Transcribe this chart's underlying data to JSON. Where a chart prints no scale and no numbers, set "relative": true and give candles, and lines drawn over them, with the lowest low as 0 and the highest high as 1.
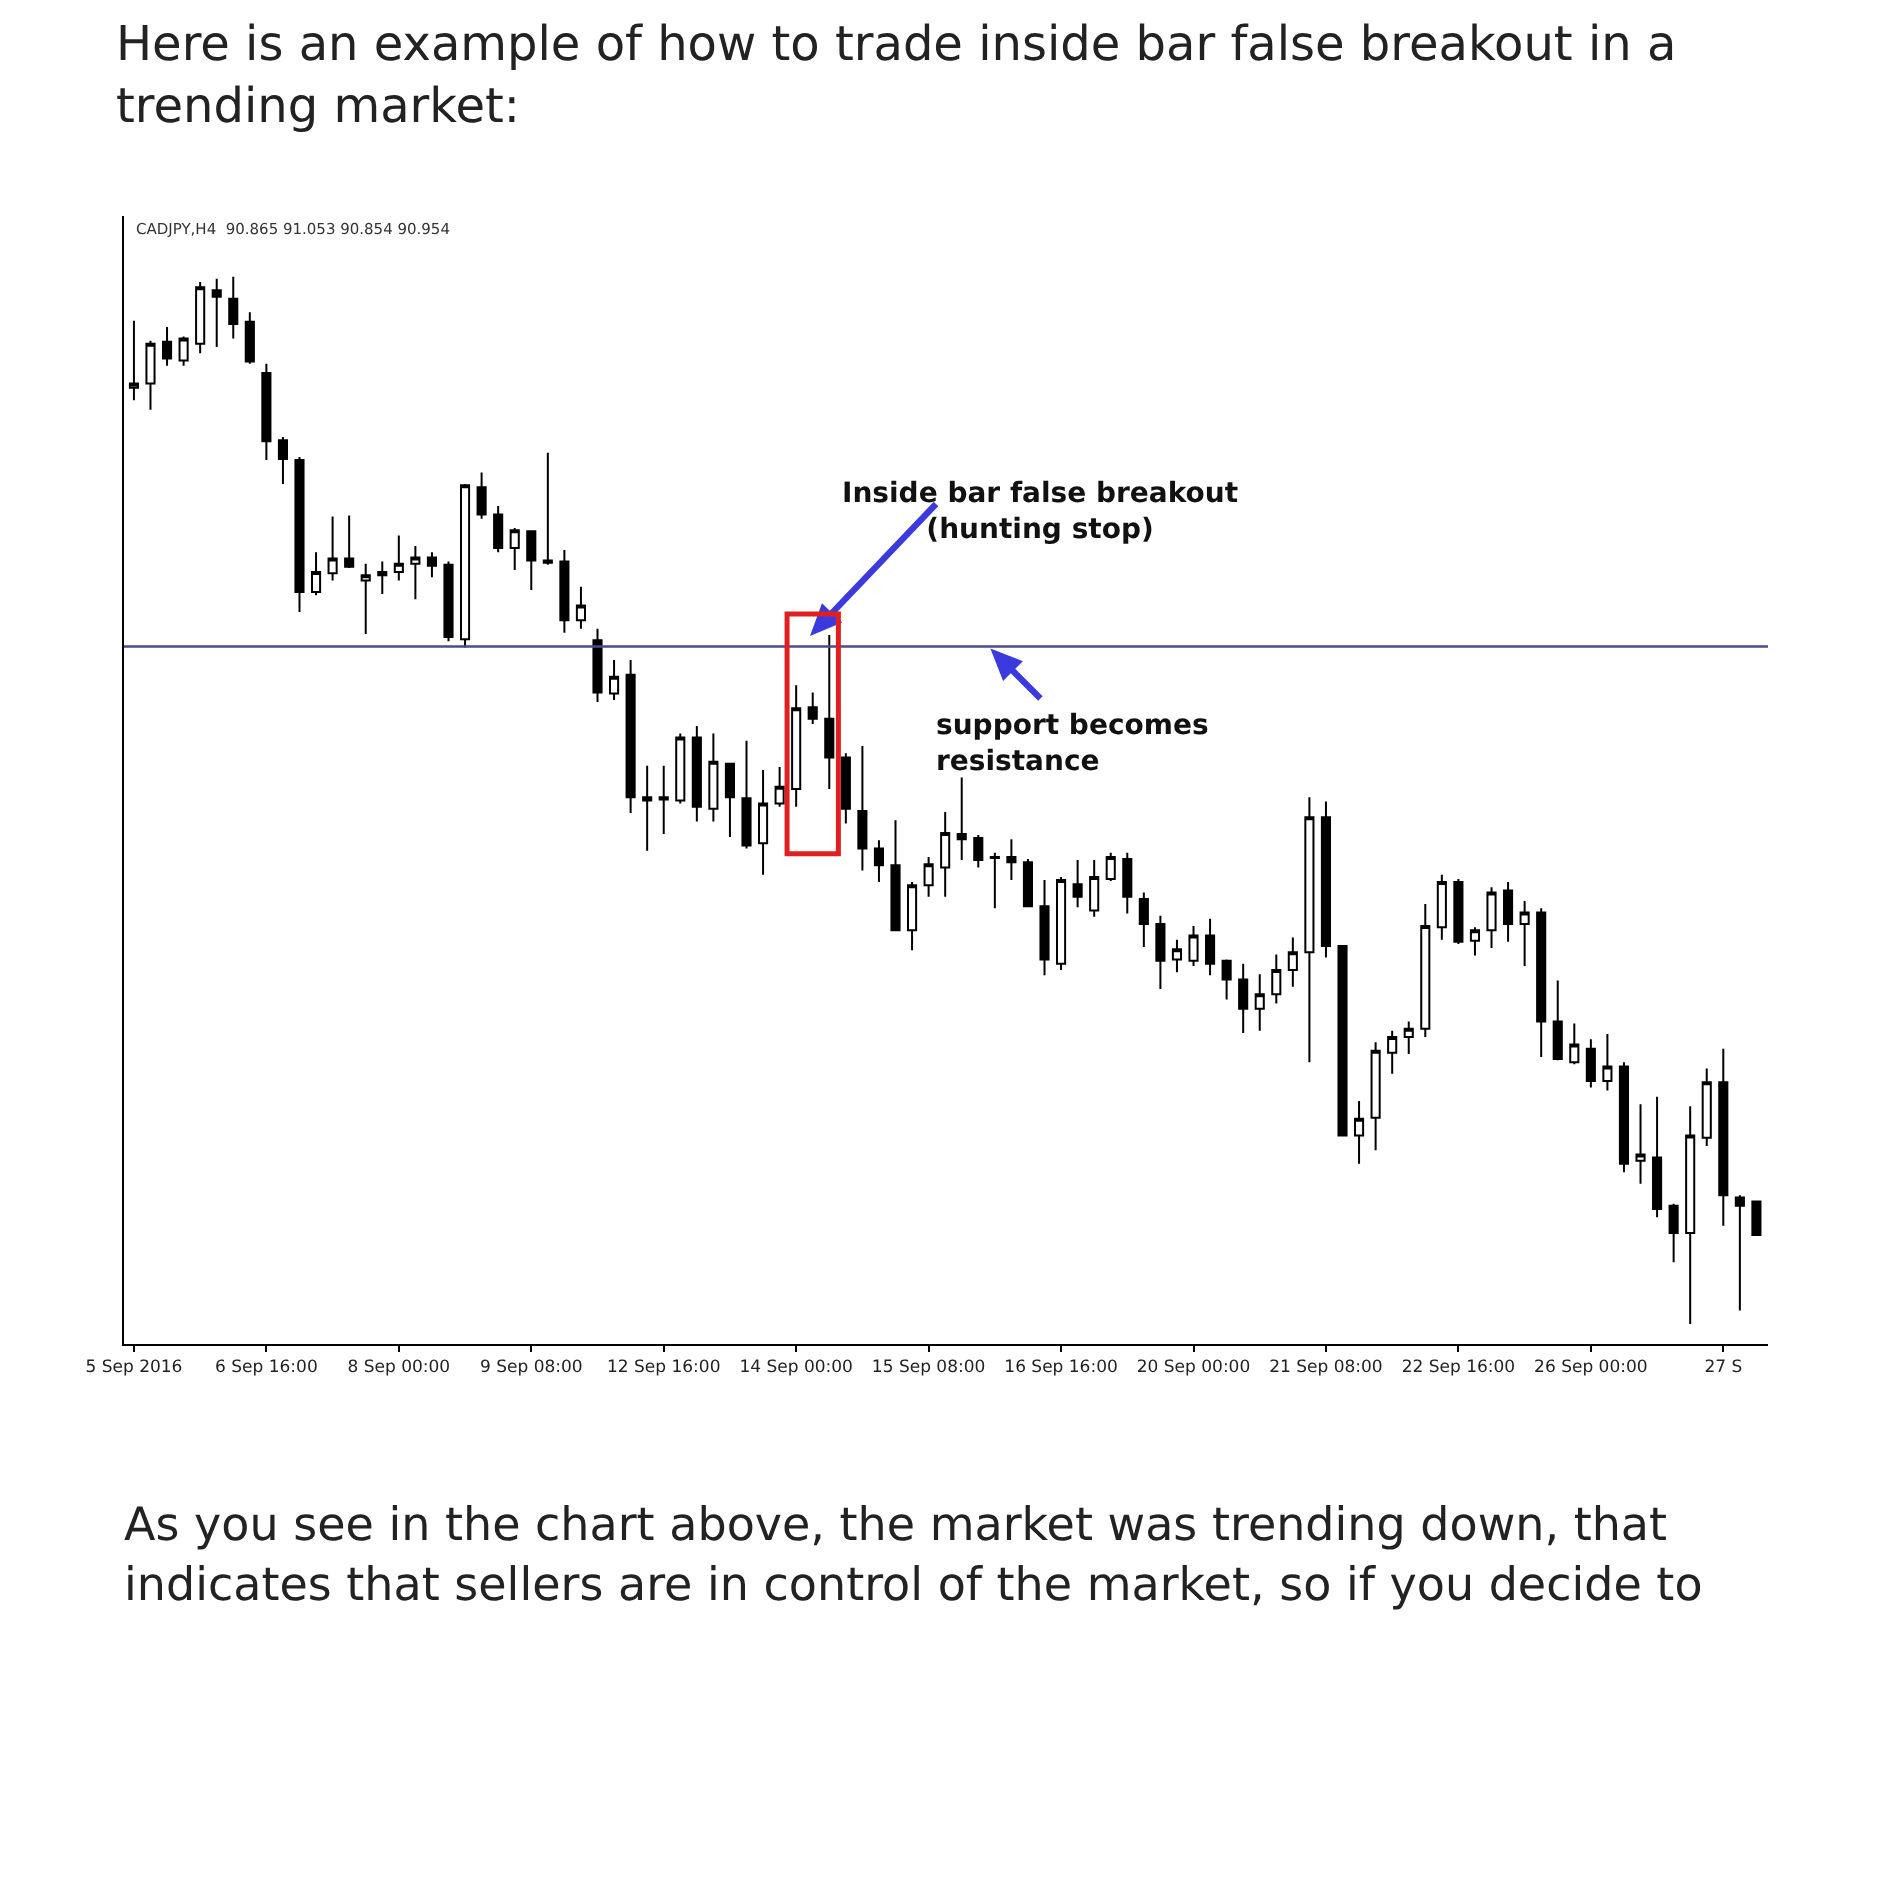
{
  "chart_data": {
    "type": "candlestick",
    "title": "Here is an example of how to trade inside bar false breakout in a trending market:",
    "subtitle": "CADJPY,H4  90.865 91.053 90.854 90.954",
    "relative": true,
    "tick_labels": "x",
    "categories": [
      "5 Sep 2016",
      null,
      null,
      null,
      null,
      null,
      null,
      null,
      "6 Sep 16:00",
      null,
      null,
      null,
      null,
      null,
      null,
      null,
      "8 Sep 00:00",
      null,
      null,
      null,
      null,
      null,
      null,
      null,
      "9 Sep 08:00",
      null,
      null,
      null,
      null,
      null,
      null,
      null,
      "12 Sep 16:00",
      null,
      null,
      null,
      null,
      null,
      null,
      null,
      "14 Sep 00:00",
      null,
      null,
      null,
      null,
      null,
      null,
      null,
      "15 Sep 08:00",
      null,
      null,
      null,
      null,
      null,
      null,
      null,
      "16 Sep 16:00",
      null,
      null,
      null,
      null,
      null,
      null,
      null,
      "20 Sep 00:00",
      null,
      null,
      null,
      null,
      null,
      null,
      null,
      "21 Sep 08:00",
      null,
      null,
      null,
      null,
      null,
      null,
      null,
      "22 Sep 16:00",
      null,
      null,
      null,
      null,
      null,
      null,
      null,
      "26 Sep 00:00",
      null,
      null,
      null,
      null,
      null,
      null,
      null,
      "27 S",
      null,
      null
    ],
    "ohlc": [
      [
        0.894,
        0.958,
        0.882,
        0.898
      ],
      [
        0.898,
        0.939,
        0.873,
        0.936
      ],
      [
        0.938,
        0.952,
        0.915,
        0.922
      ],
      [
        0.92,
        0.943,
        0.915,
        0.941
      ],
      [
        0.936,
        0.995,
        0.927,
        0.99
      ],
      [
        0.987,
        0.998,
        0.933,
        0.981
      ],
      [
        0.979,
        1,
        0.941,
        0.955
      ],
      [
        0.957,
        0.966,
        0.917,
        0.919
      ],
      [
        0.908,
        0.917,
        0.825,
        0.843
      ],
      [
        0.844,
        0.847,
        0.802,
        0.826
      ],
      [
        0.825,
        0.828,
        0.68,
        0.699
      ],
      [
        0.699,
        0.737,
        0.696,
        0.718
      ],
      [
        0.717,
        0.771,
        0.71,
        0.731
      ],
      [
        0.731,
        0.772,
        0.722,
        0.723
      ],
      [
        0.71,
        0.726,
        0.659,
        0.715
      ],
      [
        0.715,
        0.728,
        0.697,
        0.718
      ],
      [
        0.718,
        0.753,
        0.71,
        0.726
      ],
      [
        0.726,
        0.743,
        0.692,
        0.732
      ],
      [
        0.732,
        0.737,
        0.713,
        0.724
      ],
      [
        0.725,
        0.728,
        0.652,
        0.656
      ],
      [
        0.654,
        0.802,
        0.646,
        0.801
      ],
      [
        0.799,
        0.813,
        0.769,
        0.773
      ],
      [
        0.773,
        0.781,
        0.737,
        0.741
      ],
      [
        0.741,
        0.76,
        0.72,
        0.758
      ],
      [
        0.757,
        0.758,
        0.701,
        0.729
      ],
      [
        0.729,
        0.832,
        0.725,
        0.727
      ],
      [
        0.728,
        0.739,
        0.66,
        0.672
      ],
      [
        0.672,
        0.704,
        0.664,
        0.686
      ],
      [
        0.653,
        0.664,
        0.594,
        0.603
      ],
      [
        0.602,
        0.634,
        0.596,
        0.618
      ],
      [
        0.62,
        0.634,
        0.488,
        0.503
      ],
      [
        0.503,
        0.533,
        0.452,
        0.5
      ],
      [
        0.501,
        0.533,
        0.468,
        0.503
      ],
      [
        0.5,
        0.564,
        0.497,
        0.56
      ],
      [
        0.56,
        0.571,
        0.48,
        0.494
      ],
      [
        0.492,
        0.564,
        0.48,
        0.537
      ],
      [
        0.535,
        0.536,
        0.465,
        0.503
      ],
      [
        0.502,
        0.557,
        0.454,
        0.457
      ],
      [
        0.459,
        0.529,
        0.429,
        0.497
      ],
      [
        0.497,
        0.532,
        0.494,
        0.513
      ],
      [
        0.511,
        0.61,
        0.494,
        0.588
      ],
      [
        0.589,
        0.603,
        0.573,
        0.578
      ],
      [
        0.578,
        0.658,
        0.511,
        0.541
      ],
      [
        0.541,
        0.545,
        0.478,
        0.492
      ],
      [
        0.49,
        0.552,
        0.433,
        0.454
      ],
      [
        0.454,
        0.462,
        0.422,
        0.438
      ],
      [
        0.438,
        0.481,
        0.375,
        0.376
      ],
      [
        0.376,
        0.422,
        0.357,
        0.419
      ],
      [
        0.419,
        0.446,
        0.408,
        0.439
      ],
      [
        0.436,
        0.489,
        0.408,
        0.469
      ],
      [
        0.468,
        0.522,
        0.443,
        0.463
      ],
      [
        0.464,
        0.467,
        0.436,
        0.443
      ],
      [
        0.446,
        0.45,
        0.397,
        0.445
      ],
      [
        0.446,
        0.463,
        0.424,
        0.441
      ],
      [
        0.441,
        0.444,
        0.398,
        0.399
      ],
      [
        0.399,
        0.424,
        0.333,
        0.348
      ],
      [
        0.344,
        0.427,
        0.338,
        0.424
      ],
      [
        0.42,
        0.443,
        0.398,
        0.408
      ],
      [
        0.395,
        0.443,
        0.389,
        0.427
      ],
      [
        0.425,
        0.45,
        0.423,
        0.446
      ],
      [
        0.444,
        0.45,
        0.392,
        0.408
      ],
      [
        0.406,
        0.412,
        0.36,
        0.382
      ],
      [
        0.382,
        0.39,
        0.32,
        0.347
      ],
      [
        0.348,
        0.367,
        0.336,
        0.358
      ],
      [
        0.347,
        0.38,
        0.342,
        0.371
      ],
      [
        0.371,
        0.387,
        0.333,
        0.344
      ],
      [
        0.347,
        0.348,
        0.31,
        0.329
      ],
      [
        0.329,
        0.344,
        0.278,
        0.301
      ],
      [
        0.301,
        0.334,
        0.28,
        0.315
      ],
      [
        0.315,
        0.353,
        0.306,
        0.338
      ],
      [
        0.338,
        0.369,
        0.322,
        0.355
      ],
      [
        0.355,
        0.503,
        0.25,
        0.484
      ],
      [
        0.484,
        0.499,
        0.35,
        0.361
      ],
      [
        0.361,
        0.362,
        0.179,
        0.18
      ],
      [
        0.18,
        0.213,
        0.153,
        0.196
      ],
      [
        0.197,
        0.269,
        0.166,
        0.261
      ],
      [
        0.259,
        0.28,
        0.239,
        0.274
      ],
      [
        0.274,
        0.289,
        0.258,
        0.282
      ],
      [
        0.282,
        0.401,
        0.274,
        0.38
      ],
      [
        0.379,
        0.429,
        0.367,
        0.422
      ],
      [
        0.422,
        0.425,
        0.363,
        0.365
      ],
      [
        0.366,
        0.379,
        0.352,
        0.376
      ],
      [
        0.376,
        0.417,
        0.359,
        0.412
      ],
      [
        0.414,
        0.422,
        0.365,
        0.382
      ],
      [
        0.382,
        0.404,
        0.342,
        0.393
      ],
      [
        0.393,
        0.397,
        0.255,
        0.289
      ],
      [
        0.289,
        0.328,
        0.252,
        0.253
      ],
      [
        0.25,
        0.287,
        0.248,
        0.267
      ],
      [
        0.263,
        0.272,
        0.226,
        0.232
      ],
      [
        0.232,
        0.277,
        0.223,
        0.246
      ],
      [
        0.246,
        0.25,
        0.145,
        0.153
      ],
      [
        0.156,
        0.21,
        0.134,
        0.162
      ],
      [
        0.159,
        0.217,
        0.102,
        0.11
      ],
      [
        0.113,
        0.115,
        0.059,
        0.087
      ],
      [
        0.087,
        0.208,
        0,
        0.18
      ],
      [
        0.178,
        0.244,
        0.17,
        0.231
      ],
      [
        0.231,
        0.263,
        0.094,
        0.123
      ],
      [
        0.121,
        0.123,
        0.013,
        0.113
      ],
      [
        0.117,
        0.118,
        0.084,
        0.085
      ]
    ],
    "ref_lines": [
      {
        "axis": "y",
        "value": 0.647,
        "color": "#4b4b8c"
      }
    ],
    "annotations": [
      "Inside bar false breakout\n(hunting stop)",
      {
        "text": "support becomes\nresistance",
        "y": 0.647
      },
      "As you see in the chart above, the market was trending down, that indicates that sellers are in control of the market, so if you decide to"
    ]
  }
}
